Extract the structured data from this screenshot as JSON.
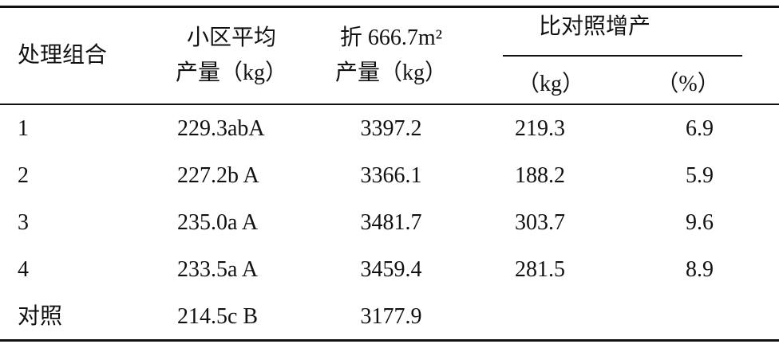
{
  "table": {
    "header": [
      [
        "处理组合"
      ],
      [
        "小区平均",
        "产量（kg）"
      ],
      [
        "折 666.7m²",
        "产量（kg）"
      ]
    ],
    "group_header": "比对照增产",
    "subheaders": [
      "（kg）",
      "（%）"
    ],
    "rows": [
      [
        "1",
        "229.3abA",
        "3397.2",
        "219.3",
        "6.9"
      ],
      [
        "2",
        "227.2b A",
        "3366.1",
        "188.2",
        "5.9"
      ],
      [
        "3",
        "235.0a A",
        "3481.7",
        "303.7",
        "9.6"
      ],
      [
        "4",
        "233.5a A",
        "3459.4",
        "281.5",
        "8.9"
      ],
      [
        "对照",
        "214.5c B",
        "3177.9"
      ]
    ]
  }
}
